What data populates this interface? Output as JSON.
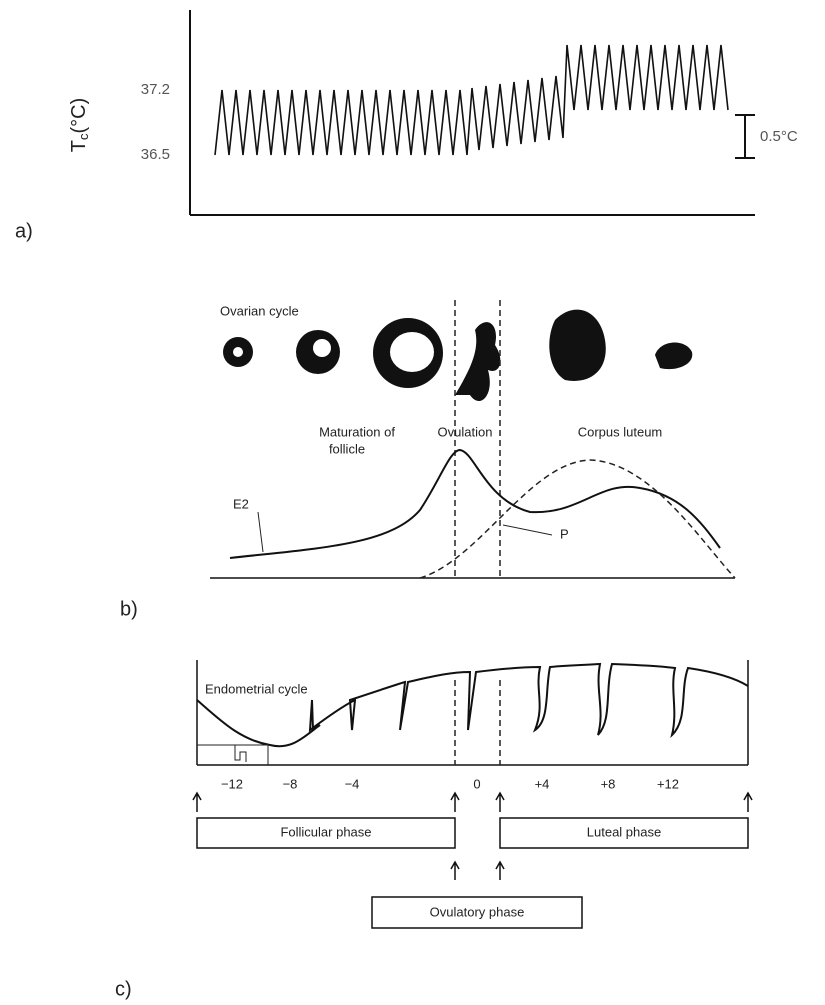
{
  "panel_a": {
    "label": "a)",
    "axis_symbol": "T",
    "axis_subscript": "c",
    "axis_unit": "(°C)",
    "ticks": [
      "37.2",
      "36.5"
    ],
    "scale_bar": "0.5°C"
  },
  "panel_b": {
    "label": "b)",
    "title": "Ovarian cycle",
    "stage_labels": [
      "Maturation of",
      "follicle",
      "Ovulation",
      "Corpus luteum"
    ],
    "curve_labels": [
      "E2",
      "P"
    ]
  },
  "panel_c": {
    "label": "c)",
    "title": "Endometrial cycle",
    "ticks": [
      "−12",
      "−8",
      "−4",
      "0",
      "+4",
      "+8",
      "+12"
    ],
    "phases": [
      "Follicular phase",
      "Luteal phase",
      "Ovulatory phase"
    ]
  }
}
